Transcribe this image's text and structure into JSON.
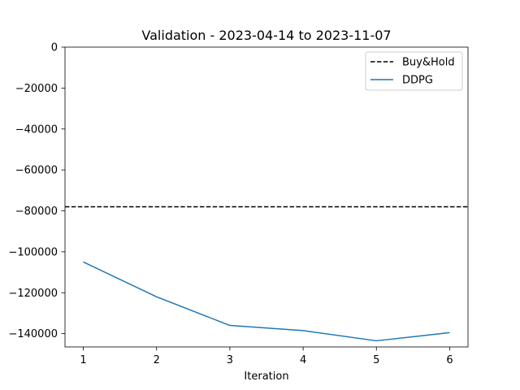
{
  "chart_data": {
    "type": "line",
    "title": "Validation - 2023-04-14 to 2023-11-07",
    "xlabel": "Iteration",
    "ylabel": "",
    "xlim": [
      0.75,
      6.25
    ],
    "ylim": [
      -146500,
      0
    ],
    "x_ticks": [
      1,
      2,
      3,
      4,
      5,
      6
    ],
    "y_ticks": [
      0,
      -20000,
      -40000,
      -60000,
      -80000,
      -100000,
      -120000,
      -140000
    ],
    "y_tick_labels": [
      "0",
      "−20000",
      "−40000",
      "−60000",
      "−80000",
      "−100000",
      "−120000",
      "−140000"
    ],
    "grid": false,
    "legend_position": "top-right",
    "series": [
      {
        "name": "Buy&Hold",
        "kind": "hline",
        "value": -78000,
        "color": "#000000",
        "style": "dashed"
      },
      {
        "name": "DDPG",
        "kind": "line",
        "x": [
          1,
          2,
          3,
          4,
          5,
          6
        ],
        "values": [
          -105000,
          -122000,
          -136000,
          -138500,
          -143500,
          -139500
        ],
        "color": "#1f77b4",
        "style": "solid"
      }
    ]
  }
}
